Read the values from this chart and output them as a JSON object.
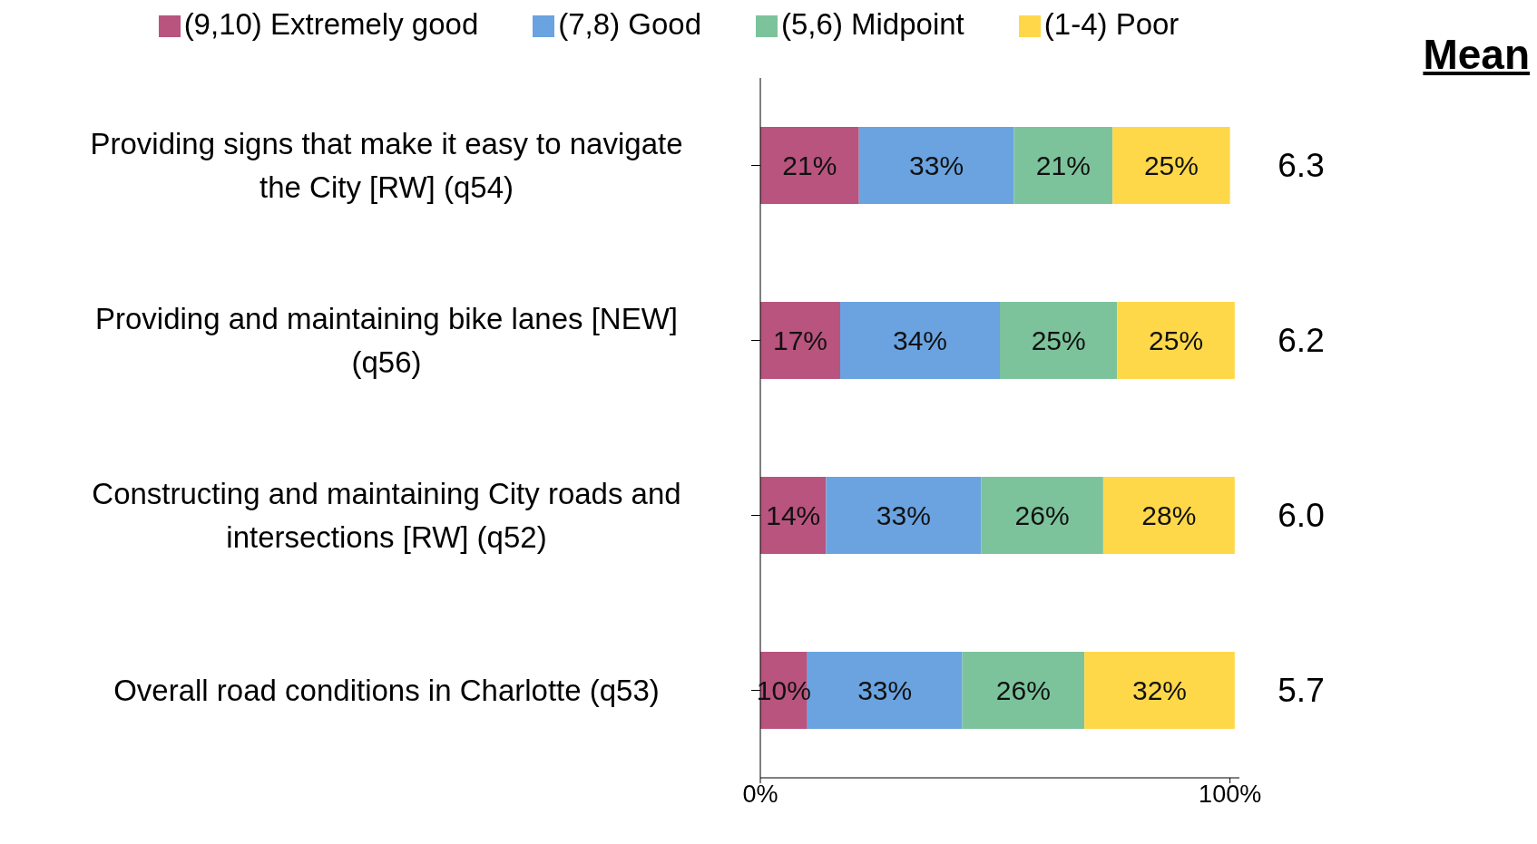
{
  "chart_data": {
    "type": "bar",
    "orientation": "horizontal",
    "stacked": true,
    "categories": [
      "Providing signs that make it easy to navigate the City [RW] (q54)",
      "Providing and maintaining bike lanes [NEW] (q56)",
      "Constructing and maintaining City roads and intersections  [RW] (q52)",
      "Overall road conditions in Charlotte (q53)"
    ],
    "series": [
      {
        "name": "(9,10) Extremely good",
        "color": "#b8547e",
        "values": [
          21,
          17,
          14,
          10
        ],
        "value_labels": [
          "21%",
          "17%",
          "14%",
          "10%"
        ]
      },
      {
        "name": "(7,8) Good",
        "color": "#6aa3e0",
        "values": [
          33,
          34,
          33,
          33
        ],
        "value_labels": [
          "33%",
          "34%",
          "33%",
          "33%"
        ]
      },
      {
        "name": "(5,6) Midpoint",
        "color": "#7cc39c",
        "values": [
          21,
          25,
          26,
          26
        ],
        "value_labels": [
          "21%",
          "25%",
          "26%",
          "26%"
        ]
      },
      {
        "name": "(1-4) Poor",
        "color": "#ffd84a",
        "values": [
          25,
          25,
          28,
          32
        ],
        "value_labels": [
          "25%",
          "25%",
          "28%",
          "32%"
        ]
      }
    ],
    "xlim": [
      0,
      102
    ],
    "xticks": [
      {
        "value": 0,
        "label": "0%"
      },
      {
        "value": 100,
        "label": "100%"
      }
    ],
    "grid": false,
    "legend": "top",
    "annotations": [
      "Mean",
      "6.3",
      "6.2",
      "6.0",
      "5.7"
    ]
  }
}
